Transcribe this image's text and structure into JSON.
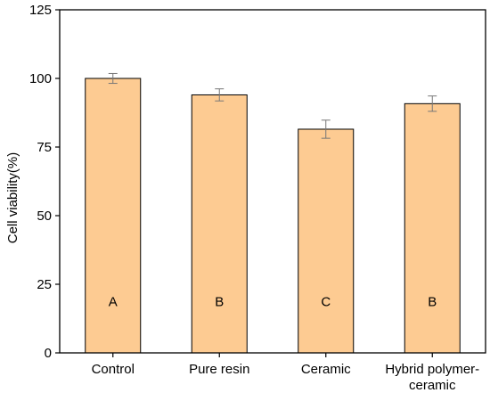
{
  "chart_data": {
    "type": "bar",
    "categories": [
      "Control",
      "Pure resin",
      "Ceramic",
      "Hybrid polymer-ceramic"
    ],
    "category_label_lines": [
      [
        "Control"
      ],
      [
        "Pure resin"
      ],
      [
        "Ceramic"
      ],
      [
        "Hybrid polymer-",
        "ceramic"
      ]
    ],
    "values": [
      100,
      94,
      81.5,
      90.8
    ],
    "errors": [
      1.8,
      2.2,
      3.3,
      2.8
    ],
    "bar_labels": [
      "A",
      "B",
      "C",
      "B"
    ],
    "ylabel": "Cell viability(%)",
    "xlabel": "",
    "ylim": [
      0,
      125
    ],
    "yticks": [
      0,
      25,
      50,
      75,
      100,
      125
    ],
    "bar_color": "#fdcb92",
    "grid": false
  }
}
